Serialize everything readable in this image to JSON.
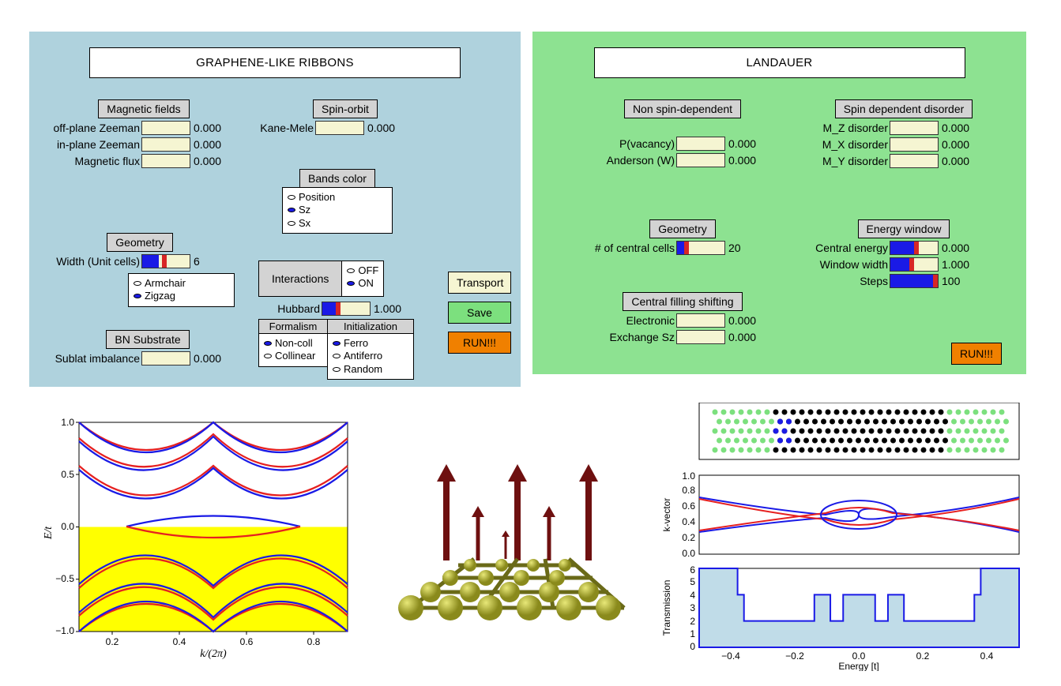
{
  "panel_left": {
    "title": "GRAPHENE-LIKE RIBBONS",
    "magnetic": {
      "header": "Magnetic fields",
      "off_plane_zeeman": {
        "label": "off-plane Zeeman",
        "value": "0.000"
      },
      "in_plane_zeeman": {
        "label": "in-plane Zeeman",
        "value": "0.000"
      },
      "magnetic_flux": {
        "label": "Magnetic flux",
        "value": "0.000"
      }
    },
    "spinorbit": {
      "header": "Spin-orbit",
      "kane_mele": {
        "label": "Kane-Mele",
        "value": "0.000"
      }
    },
    "geometry": {
      "header": "Geometry",
      "width_label": "Width (Unit cells)",
      "width_value": "6",
      "width_fill_pct": 35,
      "width_thumb_pct": 42,
      "edge_options": [
        "Armchair",
        "Zigzag"
      ],
      "edge_selected": 1
    },
    "bn_substrate": {
      "header": "BN Substrate",
      "sublat_label": "Sublat imbalance",
      "sublat_value": "0.000"
    },
    "bands_color": {
      "header": "Bands color",
      "options": [
        "Position",
        "Sz",
        "Sx"
      ],
      "selected": 1
    },
    "interactions": {
      "header": "Interactions",
      "onoff_options": [
        "OFF",
        "ON"
      ],
      "onoff_selected": 1,
      "hubbard_label": "Hubbard",
      "hubbard_value": "1.000",
      "hubbard_fill_pct": 28,
      "hubbard_thumb_pct": 28,
      "formalism_header": "Formalism",
      "formalism_options": [
        "Non-coll",
        "Collinear"
      ],
      "formalism_selected": 0,
      "init_header": "Initialization",
      "init_options": [
        "Ferro",
        "Antiferro",
        "Random"
      ],
      "init_selected": 0
    },
    "buttons": {
      "transport": "Transport",
      "save": "Save",
      "run": "RUN!!!"
    }
  },
  "panel_right": {
    "title": "LANDAUER",
    "non_spin": {
      "header": "Non spin-dependent",
      "pvacancy": {
        "label": "P(vacancy)",
        "value": "0.000"
      },
      "anderson": {
        "label": "Anderson (W)",
        "value": "0.000"
      }
    },
    "spin_dep": {
      "header": "Spin dependent disorder",
      "mz": {
        "label": "M_Z disorder",
        "value": "0.000"
      },
      "mx": {
        "label": "M_X disorder",
        "value": "0.000"
      },
      "my": {
        "label": "M_Y disorder",
        "value": "0.000"
      }
    },
    "geometry": {
      "header": "Geometry",
      "ncells_label": "# of central cells",
      "ncells_value": "20",
      "ncells_fill_pct": 15,
      "ncells_thumb_pct": 15
    },
    "central_filling": {
      "header": "Central filling shifting",
      "electronic": {
        "label": "Electronic",
        "value": "0.000"
      },
      "exchange": {
        "label": "Exchange Sz",
        "value": "0.000"
      }
    },
    "energy_window": {
      "header": "Energy window",
      "central_energy": {
        "label": "Central energy",
        "value": "0.000",
        "fill_pct": 50,
        "thumb_pct": 50
      },
      "window_width": {
        "label": "Window width",
        "value": "1.000",
        "fill_pct": 40,
        "thumb_pct": 40
      },
      "steps": {
        "label": "Steps",
        "value": "100",
        "fill_pct": 90,
        "thumb_pct": 90
      }
    },
    "run": "RUN!!!"
  },
  "band_chart": {
    "type": "line",
    "xlabel": "k/(2π)",
    "ylabel": "E/t",
    "xlim": [
      0.1,
      0.9
    ],
    "ylim": [
      -1.0,
      1.0
    ],
    "xticks": [
      0.2,
      0.4,
      0.6,
      0.8
    ],
    "yticks": [
      -1.0,
      -0.5,
      0.0,
      0.5,
      1.0
    ],
    "fill_color": "#ffff00",
    "bg_color": "#ffffff",
    "colors": {
      "red": "#e62020",
      "blue": "#1a1ae6"
    },
    "line_width": 2
  },
  "lattice_3d": {
    "atom_color": "#b8b827",
    "arrow_color": "#6e1010",
    "description": "Honeycomb lattice with vertical spin arrows"
  },
  "ribbon_panel": {
    "type": "lattice",
    "lead_color": "#7ce07e",
    "center_color": "#000000",
    "border_color": "#000000"
  },
  "kvec_chart": {
    "type": "line",
    "ylabel": "k-vector",
    "ylim": [
      0.0,
      1.0
    ],
    "yticks": [
      0.0,
      0.2,
      0.4,
      0.6,
      0.8,
      1.0
    ],
    "colors": {
      "red": "#e62020",
      "blue": "#1a1ae6"
    }
  },
  "trans_chart": {
    "type": "step",
    "xlabel": "Energy [t]",
    "ylabel": "Transmission",
    "xlim": [
      -0.5,
      0.5
    ],
    "ylim": [
      0,
      6
    ],
    "xticks": [
      -0.4,
      -0.2,
      0.0,
      0.2,
      0.4
    ],
    "yticks": [
      0,
      1,
      2,
      3,
      4,
      5,
      6
    ],
    "line_color": "#1a1ae6",
    "fill_color": "#c0dce8",
    "steps_x": [
      -0.5,
      -0.38,
      -0.38,
      -0.36,
      -0.36,
      -0.14,
      -0.14,
      -0.09,
      -0.09,
      -0.05,
      -0.05,
      0.05,
      0.05,
      0.09,
      0.09,
      0.14,
      0.14,
      0.36,
      0.36,
      0.38,
      0.38,
      0.5
    ],
    "steps_y": [
      6,
      6,
      4,
      4,
      2,
      2,
      4,
      4,
      2,
      2,
      4,
      4,
      2,
      2,
      4,
      4,
      2,
      2,
      4,
      4,
      6,
      6
    ]
  }
}
